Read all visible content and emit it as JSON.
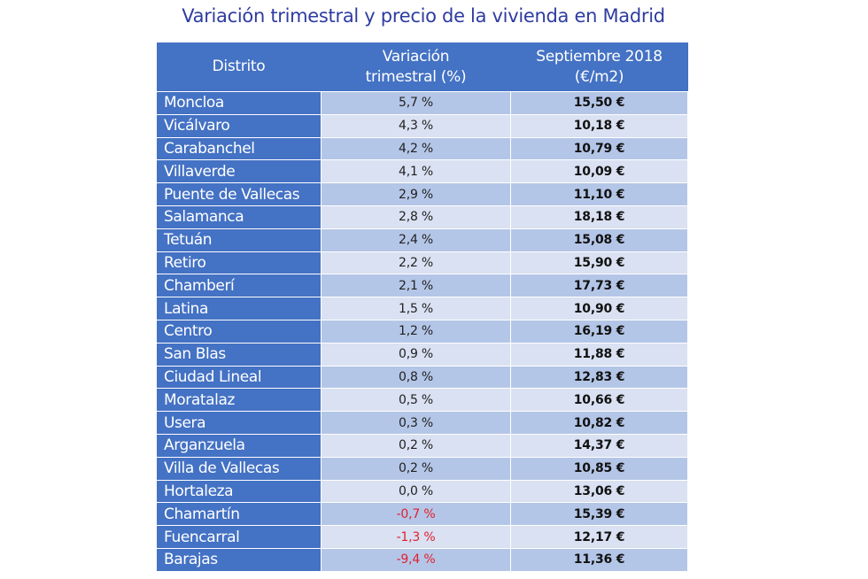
{
  "chart_data": {
    "type": "table",
    "title": "Variación trimestral y precio de la vivienda en Madrid",
    "columns": [
      "Distrito",
      "Variación trimestral (%)",
      "Septiembre 2018 (€/m2)"
    ],
    "header_lines": [
      [
        "Distrito"
      ],
      [
        "Variación",
        "trimestral (%)"
      ],
      [
        "Septiembre 2018",
        "(€/m2)"
      ]
    ],
    "rows": [
      {
        "distrito": "Moncloa",
        "variacion": "5,7 %",
        "precio": "15,50 €"
      },
      {
        "distrito": "Vicálvaro",
        "variacion": "4,3 %",
        "precio": "10,18 €"
      },
      {
        "distrito": "Carabanchel",
        "variacion": "4,2 %",
        "precio": "10,79 €"
      },
      {
        "distrito": "Villaverde",
        "variacion": "4,1 %",
        "precio": "10,09 €"
      },
      {
        "distrito": "Puente de Vallecas",
        "variacion": "2,9 %",
        "precio": "11,10 €"
      },
      {
        "distrito": "Salamanca",
        "variacion": "2,8 %",
        "precio": "18,18 €"
      },
      {
        "distrito": "Tetuán",
        "variacion": "2,4 %",
        "precio": "15,08 €"
      },
      {
        "distrito": "Retiro",
        "variacion": "2,2 %",
        "precio": "15,90 €"
      },
      {
        "distrito": "Chamberí",
        "variacion": "2,1 %",
        "precio": "17,73 €"
      },
      {
        "distrito": "Latina",
        "variacion": "1,5 %",
        "precio": "10,90 €"
      },
      {
        "distrito": "Centro",
        "variacion": "1,2 %",
        "precio": "16,19 €"
      },
      {
        "distrito": "San Blas",
        "variacion": "0,9 %",
        "precio": "11,88 €"
      },
      {
        "distrito": "Ciudad Lineal",
        "variacion": "0,8 %",
        "precio": "12,83 €"
      },
      {
        "distrito": "Moratalaz",
        "variacion": "0,5 %",
        "precio": "10,66 €"
      },
      {
        "distrito": "Usera",
        "variacion": "0,3 %",
        "precio": "10,82 €"
      },
      {
        "distrito": "Arganzuela",
        "variacion": "0,2 %",
        "precio": "14,37 €"
      },
      {
        "distrito": "Villa de Vallecas",
        "variacion": "0,2 %",
        "precio": "10,85 €"
      },
      {
        "distrito": "Hortaleza",
        "variacion": "0,0 %",
        "precio": "13,06 €"
      },
      {
        "distrito": "Chamartín",
        "variacion": "-0,7 %",
        "precio": "15,39 €"
      },
      {
        "distrito": "Fuencarral",
        "variacion": "-1,3 %",
        "precio": "12,17 €"
      },
      {
        "distrito": "Barajas",
        "variacion": "-9,4 %",
        "precio": "11,36 €"
      }
    ],
    "colors": {
      "header": "#4472C4",
      "row_odd": "#B4C6E7",
      "row_even": "#D9E1F2",
      "negative": "#E0202E",
      "title": "#2E3CA0"
    }
  }
}
